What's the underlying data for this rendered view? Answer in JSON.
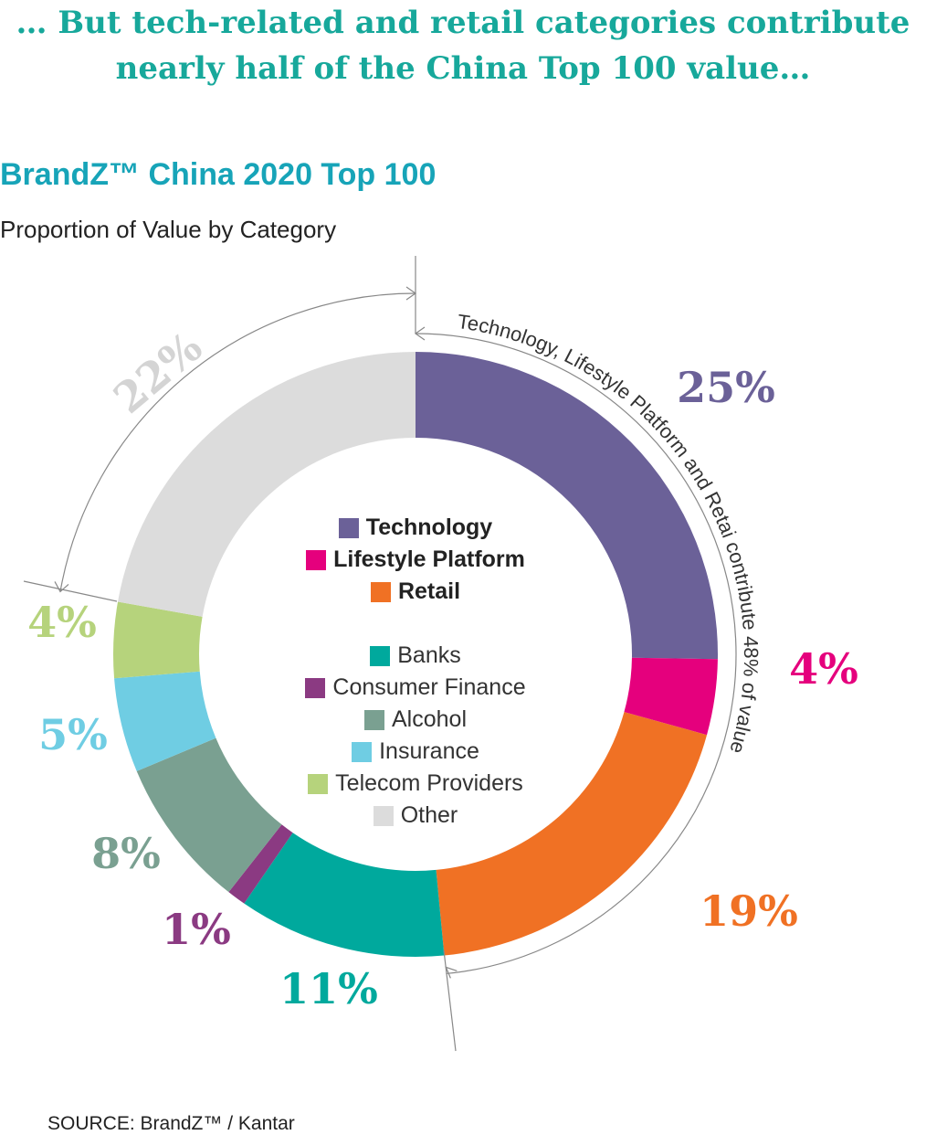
{
  "headline": {
    "line1": "… But tech-related and retail categories contribute",
    "line2": "nearly half of the China Top 100 value…"
  },
  "source": "SOURCE: BrandZ™ / Kantar",
  "colors": {
    "headline": "#17a89b",
    "title": "#17a4b8"
  },
  "chart_data": {
    "type": "donut",
    "title": "BrandZ™ China 2020 Top 100",
    "subtitle": "Proportion of Value by Category",
    "unit": "%",
    "series": [
      {
        "name": "Technology",
        "value": 25,
        "label": "25%",
        "color": "#6b6198",
        "label_color": "#6b6198",
        "bold": true
      },
      {
        "name": "Lifestyle Platform",
        "value": 4,
        "label": "4%",
        "color": "#e5007d",
        "label_color": "#e5007d",
        "bold": true
      },
      {
        "name": "Retail",
        "value": 19,
        "label": "19%",
        "color": "#f07124",
        "label_color": "#f07124",
        "bold": true
      },
      {
        "name": "Banks",
        "value": 11,
        "label": "11%",
        "color": "#00a99d",
        "label_color": "#00a99d",
        "bold": false
      },
      {
        "name": "Consumer Finance",
        "value": 1,
        "label": "1%",
        "color": "#8b3a82",
        "label_color": "#8b3a82",
        "bold": false
      },
      {
        "name": "Alcohol",
        "value": 8,
        "label": "8%",
        "color": "#7aa091",
        "label_color": "#7aa091",
        "bold": false
      },
      {
        "name": "Insurance",
        "value": 5,
        "label": "5%",
        "color": "#6fcde3",
        "label_color": "#6fcde3",
        "bold": false
      },
      {
        "name": "Telecom Providers",
        "value": 4,
        "label": "4%",
        "color": "#b6d37c",
        "label_color": "#b6d37c",
        "bold": false
      },
      {
        "name": "Other",
        "value": 22,
        "label": "22%",
        "color": "#dcdcdc",
        "label_color": "#d4d4d4",
        "bold": false
      }
    ],
    "annotation": "Technology, Lifestyle Platform and Retai contribute 48% of value"
  }
}
